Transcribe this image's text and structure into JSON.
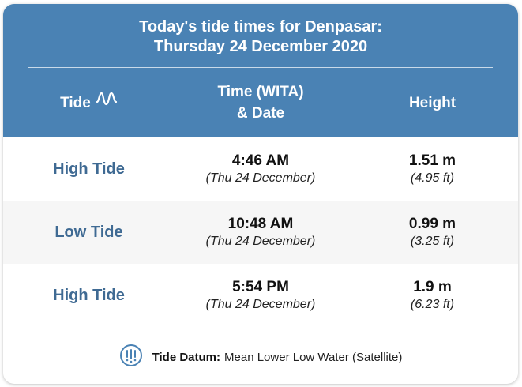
{
  "header": {
    "title_line1": "Today's tide times for Denpasar:",
    "title_line2": "Thursday 24 December 2020"
  },
  "columns": {
    "tide": "Tide",
    "time_line1": "Time (WITA)",
    "time_line2": "& Date",
    "height": "Height"
  },
  "rows": [
    {
      "type": "High Tide",
      "time": "4:46 AM",
      "date": "(Thu 24 December)",
      "height_m": "1.51 m",
      "height_ft": "(4.95 ft)"
    },
    {
      "type": "Low Tide",
      "time": "10:48 AM",
      "date": "(Thu 24 December)",
      "height_m": "0.99 m",
      "height_ft": "(3.25 ft)"
    },
    {
      "type": "High Tide",
      "time": "5:54 PM",
      "date": "(Thu 24 December)",
      "height_m": "1.9 m",
      "height_ft": "(6.23 ft)"
    }
  ],
  "footer": {
    "label": "Tide Datum:",
    "value": "Mean Lower Low Water (Satellite)"
  },
  "icons": {
    "header_icon": "tide-wave-icon",
    "footer_icon": "water-drops-icon"
  },
  "colors": {
    "header_bg": "#4a82b4",
    "tide_label": "#3f6a93",
    "alt_row_bg": "#f6f6f6",
    "footer_icon": "#4a82b4"
  }
}
